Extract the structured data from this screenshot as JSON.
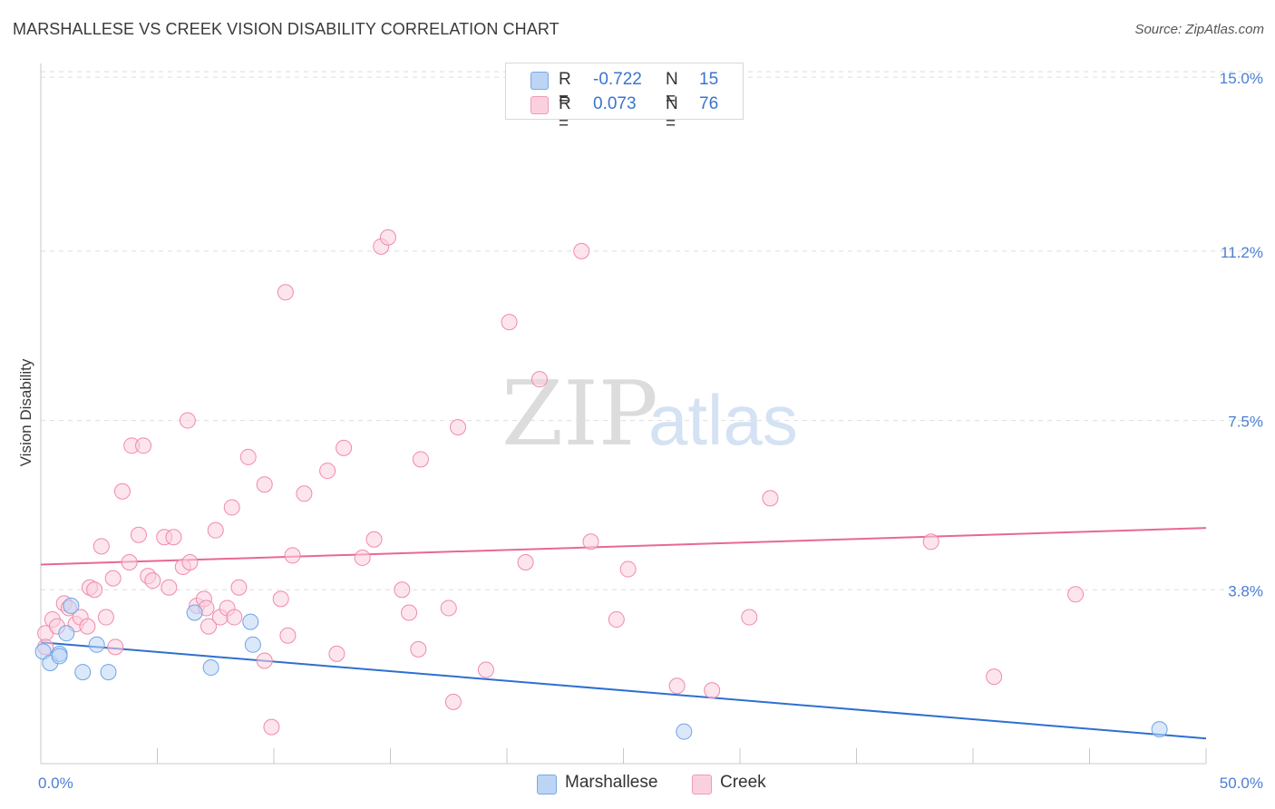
{
  "title": "MARSHALLESE VS CREEK VISION DISABILITY CORRELATION CHART",
  "source": "Source: ZipAtlas.com",
  "watermark": {
    "zip": "ZIP",
    "atlas": "atlas"
  },
  "legend": {
    "rows": [
      {
        "r_label": "R =",
        "r_value": "-0.722",
        "n_label": "N =",
        "n_value": "15",
        "color": "#a8c8f0"
      },
      {
        "r_label": "R =",
        "r_value": "0.073",
        "n_label": "N =",
        "n_value": "76",
        "color": "#f7b9cc"
      }
    ]
  },
  "bottom_legend": [
    {
      "label": "Marshallese",
      "color": "#a8c8f0"
    },
    {
      "label": "Creek",
      "color": "#f7b9cc"
    }
  ],
  "chart_data": {
    "type": "scatter",
    "title": "MARSHALLESE VS CREEK VISION DISABILITY CORRELATION CHART",
    "xlabel": "",
    "ylabel": "Vision Disability",
    "xlim": [
      0,
      50
    ],
    "ylim": [
      0,
      15.3
    ],
    "x_tick_labels": [
      "0.0%",
      "50.0%"
    ],
    "y_ticks": [
      3.8,
      7.5,
      11.2,
      15.0
    ],
    "y_tick_labels": [
      "3.8%",
      "7.5%",
      "11.2%",
      "15.0%"
    ],
    "grid": true,
    "legend_position": "top-center",
    "series": [
      {
        "name": "Marshallese",
        "color": "#6fa3e6",
        "fill": "#bcd5f5",
        "line_color": "#2e6fd0",
        "trend": {
          "x": [
            0,
            50
          ],
          "y": [
            2.65,
            0.55
          ]
        },
        "points": [
          [
            0.1,
            2.45
          ],
          [
            0.4,
            2.2
          ],
          [
            0.8,
            2.4
          ],
          [
            0.8,
            2.35
          ],
          [
            1.1,
            2.85
          ],
          [
            1.3,
            3.45
          ],
          [
            1.8,
            2.0
          ],
          [
            2.4,
            2.6
          ],
          [
            2.9,
            2.0
          ],
          [
            6.6,
            3.3
          ],
          [
            7.3,
            2.1
          ],
          [
            9.0,
            3.1
          ],
          [
            9.1,
            2.6
          ],
          [
            27.6,
            0.7
          ],
          [
            48.0,
            0.75
          ]
        ]
      },
      {
        "name": "Creek",
        "color": "#f08aaa",
        "fill": "#fbd0de",
        "line_color": "#e8698f",
        "trend": {
          "x": [
            0,
            50
          ],
          "y": [
            4.35,
            5.15
          ]
        },
        "points": [
          [
            0.2,
            2.85
          ],
          [
            0.2,
            2.55
          ],
          [
            0.5,
            3.15
          ],
          [
            0.7,
            3.0
          ],
          [
            1.0,
            3.5
          ],
          [
            1.2,
            3.4
          ],
          [
            1.5,
            3.05
          ],
          [
            1.7,
            3.2
          ],
          [
            2.0,
            3.0
          ],
          [
            2.1,
            3.85
          ],
          [
            2.3,
            3.8
          ],
          [
            2.6,
            4.75
          ],
          [
            2.8,
            3.2
          ],
          [
            3.1,
            4.05
          ],
          [
            3.2,
            2.55
          ],
          [
            3.5,
            5.95
          ],
          [
            3.8,
            4.4
          ],
          [
            3.9,
            6.95
          ],
          [
            4.2,
            5.0
          ],
          [
            4.4,
            6.95
          ],
          [
            4.6,
            4.1
          ],
          [
            4.8,
            4.0
          ],
          [
            5.3,
            4.95
          ],
          [
            5.5,
            3.85
          ],
          [
            5.7,
            4.95
          ],
          [
            6.1,
            4.3
          ],
          [
            6.3,
            7.5
          ],
          [
            6.4,
            4.4
          ],
          [
            6.7,
            3.45
          ],
          [
            7.0,
            3.6
          ],
          [
            7.1,
            3.4
          ],
          [
            7.2,
            3.0
          ],
          [
            7.5,
            5.1
          ],
          [
            7.7,
            3.2
          ],
          [
            8.0,
            3.4
          ],
          [
            8.2,
            5.6
          ],
          [
            8.3,
            3.2
          ],
          [
            8.5,
            3.85
          ],
          [
            8.9,
            6.7
          ],
          [
            9.6,
            2.25
          ],
          [
            9.6,
            6.1
          ],
          [
            9.9,
            0.8
          ],
          [
            10.3,
            3.6
          ],
          [
            10.5,
            10.3
          ],
          [
            10.6,
            2.8
          ],
          [
            10.8,
            4.55
          ],
          [
            11.3,
            5.9
          ],
          [
            12.3,
            6.4
          ],
          [
            12.7,
            2.4
          ],
          [
            13.0,
            6.9
          ],
          [
            13.8,
            4.5
          ],
          [
            14.3,
            4.9
          ],
          [
            14.6,
            11.3
          ],
          [
            14.9,
            11.5
          ],
          [
            15.5,
            3.8
          ],
          [
            15.8,
            3.3
          ],
          [
            16.2,
            2.5
          ],
          [
            16.3,
            6.65
          ],
          [
            17.5,
            3.4
          ],
          [
            17.7,
            1.35
          ],
          [
            17.9,
            7.35
          ],
          [
            19.1,
            2.05
          ],
          [
            20.1,
            9.65
          ],
          [
            20.8,
            4.4
          ],
          [
            21.4,
            8.4
          ],
          [
            23.2,
            11.2
          ],
          [
            23.6,
            4.85
          ],
          [
            24.7,
            3.15
          ],
          [
            25.2,
            4.25
          ],
          [
            27.3,
            1.7
          ],
          [
            28.8,
            1.6
          ],
          [
            30.4,
            3.2
          ],
          [
            31.3,
            5.8
          ],
          [
            38.2,
            4.85
          ],
          [
            40.9,
            1.9
          ],
          [
            44.4,
            3.7
          ]
        ]
      }
    ]
  }
}
